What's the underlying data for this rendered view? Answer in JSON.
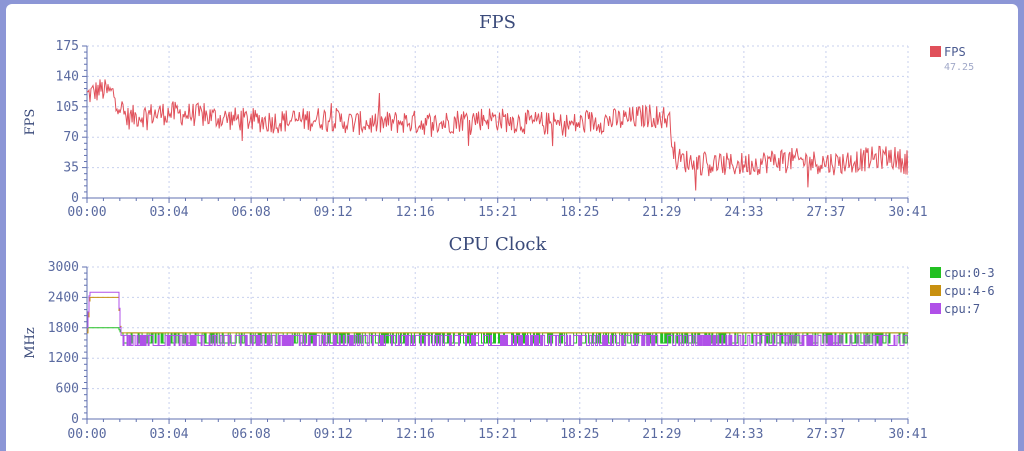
{
  "colors": {
    "background": "#8c96d6",
    "panel": "#ffffff",
    "grid": "#c8d0ee",
    "axis": "#6272b0",
    "fps": "#e0505a",
    "cpu0_3": "#22c022",
    "cpu4_6": "#c89010",
    "cpu7": "#b050e8"
  },
  "chart_data": [
    {
      "type": "line",
      "title": "FPS",
      "xlabel": "",
      "ylabel": "FPS",
      "x_unit": "mm:ss",
      "x_range": [
        "00:00",
        "30:41"
      ],
      "xticks": [
        "00:00",
        "03:04",
        "06:08",
        "09:12",
        "12:16",
        "15:21",
        "18:25",
        "21:29",
        "24:33",
        "27:37",
        "30:41"
      ],
      "ylim": [
        0,
        175
      ],
      "yticks": [
        0,
        35,
        70,
        105,
        140,
        175
      ],
      "grid": true,
      "legend_position": "right",
      "series": [
        {
          "name": "FPS",
          "legend_value": "47.25",
          "color": "#e0505a",
          "x": [
            "00:00",
            "00:30",
            "01:00",
            "01:20",
            "01:30",
            "02:00",
            "03:00",
            "04:00",
            "05:00",
            "06:00",
            "07:00",
            "08:00",
            "09:00",
            "10:00",
            "11:00",
            "12:00",
            "13:00",
            "14:00",
            "15:00",
            "16:00",
            "17:00",
            "18:00",
            "19:00",
            "20:00",
            "21:00",
            "21:45",
            "22:00",
            "22:30",
            "23:00",
            "24:00",
            "25:00",
            "26:00",
            "27:00",
            "28:00",
            "29:00",
            "30:00",
            "30:41"
          ],
          "y": [
            118,
            125,
            120,
            100,
            92,
            95,
            98,
            96,
            92,
            90,
            88,
            90,
            92,
            86,
            86,
            88,
            85,
            90,
            92,
            88,
            86,
            84,
            88,
            90,
            95,
            92,
            45,
            42,
            40,
            38,
            40,
            45,
            42,
            40,
            44,
            48,
            40
          ]
        }
      ]
    },
    {
      "type": "line",
      "title": "CPU Clock",
      "xlabel": "",
      "ylabel": "MHz",
      "x_unit": "mm:ss",
      "x_range": [
        "00:00",
        "30:41"
      ],
      "xticks": [
        "00:00",
        "03:04",
        "06:08",
        "09:12",
        "12:16",
        "15:21",
        "18:25",
        "21:29",
        "24:33",
        "27:37",
        "30:41"
      ],
      "ylim": [
        0,
        3000
      ],
      "yticks": [
        0,
        600,
        1200,
        1800,
        2400,
        3000
      ],
      "grid": true,
      "legend_position": "right",
      "series": [
        {
          "name": "cpu:0-3",
          "color": "#22c022",
          "x": [
            "00:00",
            "01:10",
            "01:15",
            "30:41"
          ],
          "y": [
            1800,
            1800,
            1700,
            1700
          ],
          "dips_to": 1500
        },
        {
          "name": "cpu:4-6",
          "color": "#c89010",
          "x": [
            "00:00",
            "00:05",
            "01:10",
            "01:15",
            "30:41"
          ],
          "y": [
            1700,
            2400,
            2400,
            1700,
            1700
          ],
          "dips_to": 1700
        },
        {
          "name": "cpu:7",
          "color": "#b050e8",
          "x": [
            "00:00",
            "00:05",
            "01:10",
            "01:15",
            "30:41"
          ],
          "y": [
            1800,
            2500,
            2500,
            1650,
            1650
          ],
          "dips_to": 1450
        }
      ]
    }
  ]
}
